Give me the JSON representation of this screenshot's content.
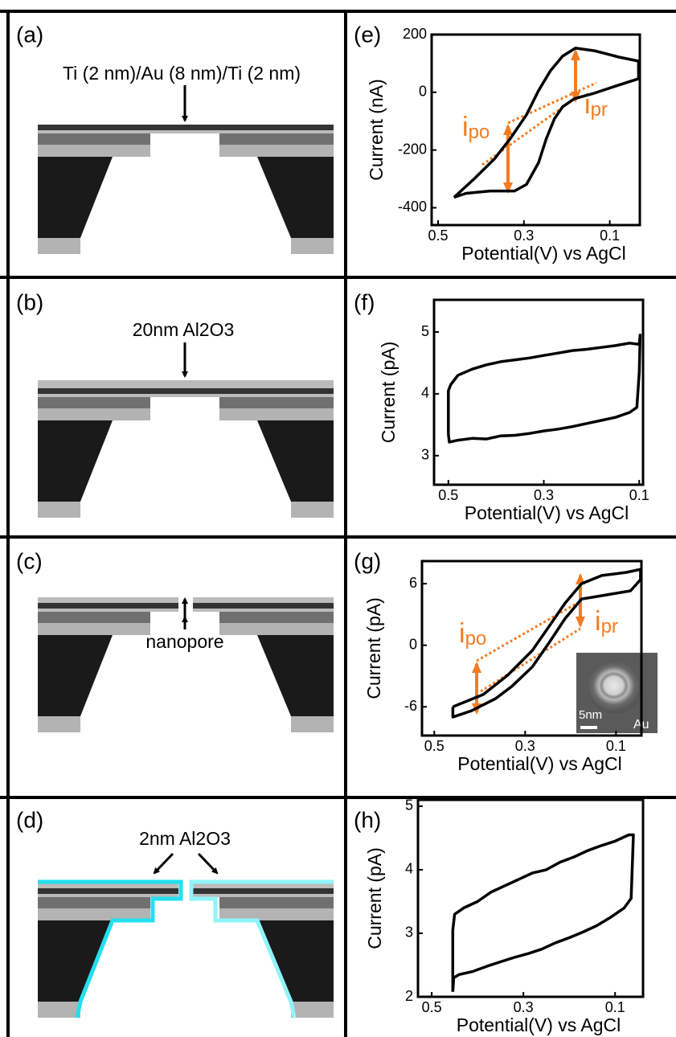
{
  "panels": [
    {
      "label": "(a)",
      "annotation": "Ti (2 nm)/Au (8 nm)/Ti (2 nm)"
    },
    {
      "label": "(b)",
      "annotation": "20nm Al2O3"
    },
    {
      "label": "(c)",
      "annotation": "nanopore"
    },
    {
      "label": "(d)",
      "annotation": "2nm Al2O3"
    }
  ],
  "chart_data": [
    {
      "type": "line",
      "panel_label": "(e)",
      "xlabel": "Potential(V) vs AgCl",
      "ylabel": "Current (nA)",
      "xlim": [
        0.515,
        0.03
      ],
      "ylim": [
        -460,
        200
      ],
      "xticks": [
        0.5,
        0.3,
        0.1
      ],
      "yticks": [
        -400,
        -200,
        0,
        200
      ],
      "x": [
        0.463,
        0.416,
        0.369,
        0.332,
        0.294,
        0.266,
        0.238,
        0.21,
        0.18,
        0.136,
        0.079,
        0.033,
        0.033,
        0.079,
        0.136,
        0.182,
        0.21,
        0.229,
        0.248,
        0.266,
        0.294,
        0.322,
        0.379,
        0.435,
        0.463
      ],
      "series": [
        {
          "color": "#000000",
          "values": [
            -364,
            -300,
            -231,
            -161,
            -78,
            6,
            75,
            125,
            153,
            144,
            122,
            108,
            47,
            25,
            -3,
            -22,
            -50,
            -92,
            -161,
            -244,
            -319,
            -342,
            -342,
            -350,
            -364
          ]
        }
      ],
      "annotations": [
        {
          "text": "i",
          "subscript": "po"
        },
        {
          "text": "i",
          "subscript": "pr"
        }
      ]
    },
    {
      "type": "line",
      "panel_label": "(f)",
      "xlabel": "Potential(V) vs AgCl",
      "ylabel": "Current (pA)",
      "xlim": [
        0.53,
        0.092
      ],
      "ylim": [
        2.53,
        5.52
      ],
      "xticks": [
        0.5,
        0.3,
        0.1
      ],
      "yticks": [
        3,
        4,
        5
      ],
      "x": [
        0.5,
        0.498,
        0.48,
        0.45,
        0.42,
        0.39,
        0.36,
        0.33,
        0.3,
        0.27,
        0.24,
        0.21,
        0.18,
        0.15,
        0.12,
        0.105,
        0.1,
        0.098,
        0.1,
        0.12,
        0.15,
        0.18,
        0.21,
        0.24,
        0.27,
        0.3,
        0.33,
        0.36,
        0.39,
        0.42,
        0.45,
        0.48,
        0.495,
        0.5,
        0.5
      ],
      "series": [
        {
          "color": "#000000",
          "values": [
            3.35,
            3.22,
            3.25,
            3.28,
            3.27,
            3.32,
            3.33,
            3.36,
            3.4,
            3.43,
            3.47,
            3.52,
            3.57,
            3.62,
            3.7,
            3.78,
            4.35,
            4.95,
            4.8,
            4.82,
            4.78,
            4.75,
            4.72,
            4.7,
            4.66,
            4.62,
            4.58,
            4.55,
            4.52,
            4.47,
            4.4,
            4.3,
            4.15,
            4.05,
            3.35
          ]
        }
      ]
    },
    {
      "type": "line",
      "panel_label": "(g)",
      "xlabel": "Potential(V) vs AgCl",
      "ylabel": "Current (pA)",
      "xlim": [
        0.527,
        0.044
      ],
      "ylim": [
        -8.8,
        8.2
      ],
      "xticks": [
        0.5,
        0.3,
        0.1
      ],
      "yticks": [
        -6,
        0,
        6
      ],
      "x": [
        0.459,
        0.392,
        0.338,
        0.284,
        0.248,
        0.212,
        0.176,
        0.131,
        0.077,
        0.046,
        0.046,
        0.068,
        0.122,
        0.176,
        0.212,
        0.248,
        0.284,
        0.329,
        0.365,
        0.419,
        0.459,
        0.459
      ],
      "series": [
        {
          "color": "#000000",
          "values": [
            -6.0,
            -4.8,
            -2.9,
            -0.5,
            1.8,
            4.1,
            6.0,
            6.8,
            7.1,
            7.4,
            6.4,
            5.3,
            4.9,
            4.5,
            2.6,
            0.2,
            -2.1,
            -4.0,
            -5.2,
            -6.4,
            -7.0,
            -6.0
          ]
        }
      ],
      "annotations": [
        {
          "text": "i",
          "subscript": "po"
        },
        {
          "text": "i",
          "subscript": "pr"
        }
      ],
      "inset": {
        "scale_label": "5nm",
        "material": "Au"
      }
    },
    {
      "type": "line",
      "panel_label": "(h)",
      "xlabel": "Potential(V) vs AgCl",
      "ylabel": "Current (pA)",
      "xlim": [
        0.53,
        0.039
      ],
      "ylim": [
        2,
        5.1
      ],
      "xticks": [
        0.5,
        0.3,
        0.1
      ],
      "yticks": [
        2,
        3,
        4,
        5
      ],
      "x": [
        0.454,
        0.452,
        0.44,
        0.41,
        0.38,
        0.35,
        0.32,
        0.29,
        0.26,
        0.23,
        0.2,
        0.17,
        0.14,
        0.11,
        0.08,
        0.065,
        0.06,
        0.07,
        0.1,
        0.13,
        0.16,
        0.19,
        0.22,
        0.25,
        0.28,
        0.31,
        0.34,
        0.37,
        0.4,
        0.43,
        0.45,
        0.454,
        0.454
      ],
      "series": [
        {
          "color": "#000000",
          "values": [
            2.08,
            2.3,
            2.35,
            2.4,
            2.48,
            2.55,
            2.62,
            2.68,
            2.75,
            2.85,
            2.93,
            3.02,
            3.12,
            3.25,
            3.4,
            3.55,
            4.55,
            4.55,
            4.45,
            4.38,
            4.3,
            4.2,
            4.12,
            4.0,
            3.95,
            3.85,
            3.75,
            3.65,
            3.5,
            3.4,
            3.3,
            3.05,
            2.08
          ]
        }
      ]
    }
  ]
}
